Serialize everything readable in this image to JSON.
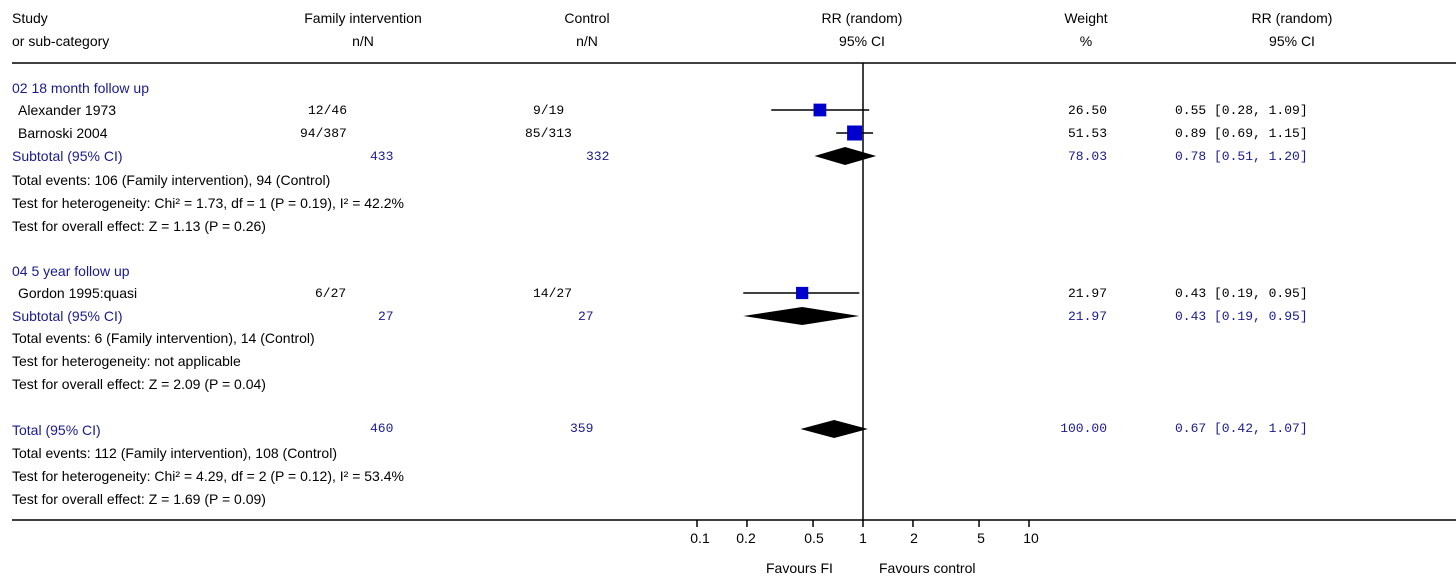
{
  "header": {
    "col_study": [
      "Study",
      "or sub-category"
    ],
    "col_treat": [
      "Family intervention",
      "n/N"
    ],
    "col_control": [
      "Control",
      "n/N"
    ],
    "col_plot": [
      "RR (random)",
      "95% CI"
    ],
    "col_weight": [
      "Weight",
      "%"
    ],
    "col_rr": [
      "RR (random)",
      "95% CI"
    ]
  },
  "groups": [
    {
      "title": "02 18 month follow up",
      "studies": [
        {
          "name": "Alexander 1973",
          "treat": "12/46",
          "control": "9/19",
          "weight": "26.50",
          "ci_text": "0.55 [0.28, 1.09]"
        },
        {
          "name": "Barnoski 2004",
          "treat": "94/387",
          "control": "85/313",
          "weight": "51.53",
          "ci_text": "0.89 [0.69, 1.15]"
        }
      ],
      "subtotal": {
        "label": "Subtotal (95% CI)",
        "treat": "433",
        "control": "332",
        "weight": "78.03",
        "ci_text": "0.78 [0.51, 1.20]"
      },
      "notes": [
        "Total events: 106 (Family intervention), 94 (Control)",
        "Test for heterogeneity: Chi² = 1.73, df = 1 (P = 0.19), I² = 42.2%",
        "Test for overall effect: Z = 1.13 (P = 0.26)"
      ]
    },
    {
      "title": "04 5 year follow up",
      "studies": [
        {
          "name": "Gordon 1995:quasi",
          "treat": "6/27",
          "control": "14/27",
          "weight": "21.97",
          "ci_text": "0.43 [0.19, 0.95]"
        }
      ],
      "subtotal": {
        "label": "Subtotal (95% CI)",
        "treat": "27",
        "control": "27",
        "weight": "21.97",
        "ci_text": "0.43 [0.19, 0.95]"
      },
      "notes": [
        "Total events: 6 (Family intervention), 14 (Control)",
        "Test for heterogeneity: not applicable",
        "Test for overall effect: Z = 2.09 (P = 0.04)"
      ]
    }
  ],
  "total": {
    "label": "Total (95% CI)",
    "treat": "460",
    "control": "359",
    "weight": "100.00",
    "ci_text": "0.67 [0.42, 1.07]",
    "notes": [
      "Total events: 112 (Family intervention), 108 (Control)",
      "Test for heterogeneity: Chi² = 4.29, df = 2 (P = 0.12), I² = 53.4%",
      "Test for overall effect: Z = 1.69 (P = 0.09)"
    ]
  },
  "axis": {
    "ticks": [
      "0.1",
      "0.2",
      "0.5",
      "1",
      "2",
      "5",
      "10"
    ],
    "favours_left": "Favours FI",
    "favours_right": "Favours control"
  },
  "colors": {
    "marker": "#0000cc",
    "diamond": "#000000",
    "summary_text": "#1a1a8c"
  },
  "chart_data": {
    "type": "forest",
    "xscale": "log",
    "xlim": [
      0.1,
      10
    ],
    "reference_line": 1,
    "studies": [
      {
        "name": "Alexander 1973",
        "rr": 0.55,
        "lo": 0.28,
        "hi": 1.09,
        "weight": 26.5
      },
      {
        "name": "Barnoski 2004",
        "rr": 0.89,
        "lo": 0.69,
        "hi": 1.15,
        "weight": 51.53
      },
      {
        "name": "Gordon 1995:quasi",
        "rr": 0.43,
        "lo": 0.19,
        "hi": 0.95,
        "weight": 21.97
      }
    ],
    "subtotals": [
      {
        "name": "Subtotal (95% CI)",
        "group": "02 18 month follow up",
        "rr": 0.78,
        "lo": 0.51,
        "hi": 1.2
      },
      {
        "name": "Subtotal (95% CI)",
        "group": "04 5 year follow up",
        "rr": 0.43,
        "lo": 0.19,
        "hi": 0.95
      }
    ],
    "overall": {
      "name": "Total (95% CI)",
      "rr": 0.67,
      "lo": 0.42,
      "hi": 1.07
    }
  }
}
